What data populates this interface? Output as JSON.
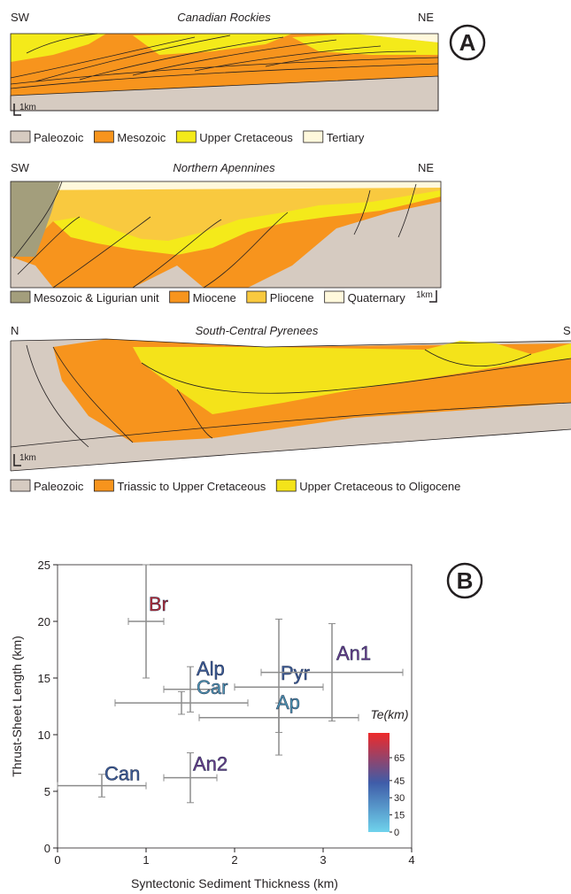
{
  "panel_a": {
    "letter": "A",
    "sections": [
      {
        "title": "Canadian Rockies",
        "left": "SW",
        "right": "NE",
        "scale": "1km",
        "legend": [
          {
            "label": "Paleozoic",
            "color": "#d6cbc1"
          },
          {
            "label": "Mesozoic",
            "color": "#f7941d"
          },
          {
            "label": "Upper Cretaceous",
            "color": "#f4ea1a"
          },
          {
            "label": "Tertiary",
            "color": "#fff8dc"
          }
        ]
      },
      {
        "title": "Northern Apennines",
        "left": "SW",
        "right": "NE",
        "scale": "1km",
        "legend": [
          {
            "label": "Mesozoic & Ligurian unit",
            "color": "#a39e7c"
          },
          {
            "label": "Miocene",
            "color": "#f7941d"
          },
          {
            "label": "Pliocene",
            "color": "#f9c93f"
          },
          {
            "label": "Quaternary",
            "color": "#fff8dc"
          }
        ]
      },
      {
        "title": "South-Central Pyrenees",
        "left": "N",
        "right": "S",
        "scale": "1km",
        "legend": [
          {
            "label": "Paleozoic",
            "color": "#d6cbc1"
          },
          {
            "label": "Triassic to Upper Cretaceous",
            "color": "#f7941d"
          },
          {
            "label": "Upper Cretaceous to Oligocene",
            "color": "#f4e31a"
          }
        ]
      }
    ]
  },
  "chart_data": {
    "type": "scatter",
    "letter": "B",
    "x_label": "Syntectonic Sediment Thickness (km)",
    "y_label": "Thrust-Sheet Length (km)",
    "xlim": [
      0,
      4
    ],
    "ylim": [
      0,
      25
    ],
    "xticks": [
      0,
      1,
      2,
      3,
      4
    ],
    "yticks": [
      0,
      5,
      10,
      15,
      20,
      25
    ],
    "error_bar_color": "#8c8c8c",
    "series": [
      {
        "name": "Br",
        "color": "#be2a33",
        "x": [
          1.0
        ],
        "values": [
          20
        ],
        "xerr": [
          0.2
        ],
        "yerr": [
          5
        ]
      },
      {
        "name": "Alp",
        "color": "#3d5d99",
        "x": [
          1.5
        ],
        "values": [
          14
        ],
        "xerr": [
          0.3
        ],
        "yerr": [
          2
        ]
      },
      {
        "name": "Car",
        "color": "#4f98b6",
        "x": [
          1.4
        ],
        "values": [
          12.8
        ],
        "xerr": [
          0.75
        ],
        "yerr": [
          1
        ]
      },
      {
        "name": "Pyr",
        "color": "#3d5d99",
        "x": [
          2.5
        ],
        "values": [
          14.2
        ],
        "xerr": [
          0.5
        ],
        "yerr": [
          6
        ]
      },
      {
        "name": "An1",
        "color": "#6a3d8c",
        "x": [
          3.1
        ],
        "values": [
          15.5
        ],
        "xerr": [
          0.8
        ],
        "yerr": [
          4.3
        ]
      },
      {
        "name": "Ap",
        "color": "#4f98b6",
        "x": [
          2.5
        ],
        "values": [
          11.5
        ],
        "xerr": [
          0.9
        ],
        "yerr": [
          1.3
        ]
      },
      {
        "name": "An2",
        "color": "#6a3d8c",
        "x": [
          1.5
        ],
        "values": [
          6.2
        ],
        "xerr": [
          0.3
        ],
        "yerr": [
          2.2
        ]
      },
      {
        "name": "Can",
        "color": "#3d5d99",
        "x": [
          0.5
        ],
        "values": [
          5.5
        ],
        "xerr": [
          0.5
        ],
        "yerr": [
          1
        ]
      }
    ],
    "colorbar": {
      "title": "Te(km)",
      "clim": [
        0,
        65
      ],
      "ticks": [
        0,
        15,
        30,
        45,
        65
      ],
      "colors": [
        "#6fd3ec",
        "#3f5ca8",
        "#ee2a2a"
      ]
    }
  }
}
